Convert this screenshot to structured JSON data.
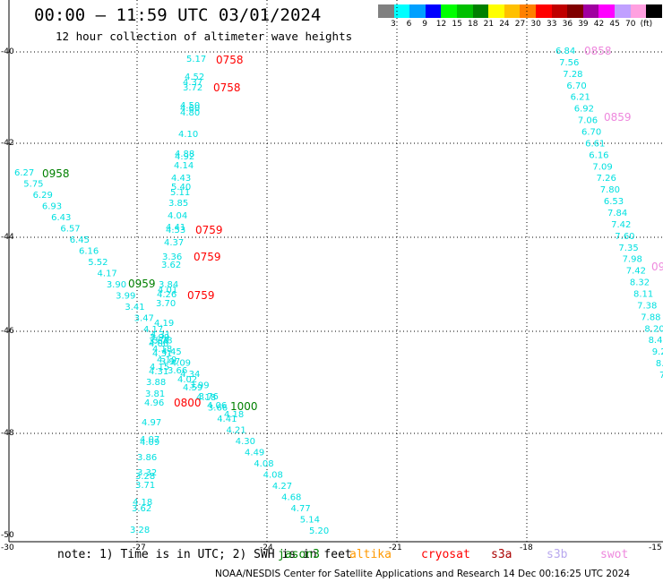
{
  "header": {
    "title": "00:00 — 11:59 UTC 03/01/2024",
    "subtitle": "12 hour collection of altimeter wave heights"
  },
  "scale": {
    "colors": [
      "#808080",
      "#00ffff",
      "#00a0ff",
      "#0000ff",
      "#00ff00",
      "#00c000",
      "#008000",
      "#ffff00",
      "#ffc000",
      "#ff8000",
      "#ff0000",
      "#c00000",
      "#800000",
      "#a000a0",
      "#ff00ff",
      "#c0a0ff",
      "#ffa0e0",
      "#000000"
    ],
    "labels": [
      "3",
      "6",
      "9",
      "12",
      "15",
      "18",
      "21",
      "24",
      "27",
      "30",
      "33",
      "36",
      "39",
      "42",
      "45",
      "70",
      "(ft)"
    ]
  },
  "axes": {
    "x_ticks": [
      "-27",
      "-24",
      "-21",
      "-18",
      "-15"
    ],
    "y_ticks": [
      "-40",
      "-42",
      "-44",
      "-46",
      "-48",
      "-50"
    ],
    "corner": "-30"
  },
  "tracks": {
    "cyan_a": [
      "5.17",
      "4.52",
      "4.37",
      "3.72",
      "4.50",
      "4.60",
      "4.80",
      "4.10"
    ],
    "cyan_b": [
      "4.88",
      "4.92",
      "4.14",
      "4.43",
      "5.40",
      "5.11",
      "3.85",
      "4.04",
      "4.41",
      "4.53",
      "4.37",
      "3.36",
      "3.62",
      "3.84",
      "4.01",
      "4.26",
      "3.70"
    ],
    "cyan_c": [
      "4.19",
      "4.31",
      "3.99",
      "3.64",
      "4.06",
      "4.18",
      "4.31",
      "4.10",
      "3.97",
      "4.15",
      "3.66",
      "4.31",
      "4.02",
      "3.88",
      "4.59",
      "3.81",
      "4.18",
      "4.96",
      "4.06",
      "4.18"
    ],
    "cyan_d": [
      "4.97",
      "4.07",
      "4.09",
      "3.86",
      "3.32",
      "3.28",
      "3.71",
      "4.18",
      "3.62",
      "3.28"
    ],
    "cyan_diag": [
      "6.27",
      "5.75",
      "6.29",
      "6.93",
      "6.43",
      "6.57",
      "6.45",
      "6.16",
      "5.52",
      "4.17",
      "3.90",
      "3.99",
      "3.41",
      "3.47",
      "4.17",
      "3.78",
      "4.45",
      "4.09",
      "4.34",
      "3.99",
      "3.76",
      "3.66",
      "4.41",
      "4.21",
      "4.30",
      "4.49",
      "4.08",
      "4.08",
      "4.27",
      "4.68",
      "4.77",
      "5.14",
      "5.20"
    ],
    "cyan_right": [
      "6.84",
      "7.56",
      "7.28",
      "6.70",
      "6.21",
      "6.92",
      "7.06",
      "6.70",
      "6.61",
      "6.16",
      "7.09",
      "7.26",
      "7.80",
      "6.53",
      "7.84",
      "7.42",
      "7.60",
      "7.35",
      "7.98",
      "7.42",
      "8.32",
      "8.11",
      "7.38",
      "7.88",
      "8.20",
      "8.4",
      "9.2",
      "8.",
      "7"
    ],
    "times_red": [
      "0758",
      "0758",
      "0759",
      "0759",
      "0759",
      "0800"
    ],
    "times_green": [
      "0958",
      "0959",
      "1000"
    ],
    "times_pink": [
      "0858",
      "0859",
      "09"
    ]
  },
  "note": "note: 1) Time is in UTC; 2) SWH is in feet",
  "satellites": [
    {
      "name": "jason3",
      "color": "#008000"
    },
    {
      "name": "altika",
      "color": "#ff9900"
    },
    {
      "name": "cryosat",
      "color": "#ff0000"
    },
    {
      "name": "s3a",
      "color": "#aa0000"
    },
    {
      "name": "s3b",
      "color": "#b8a8ee"
    },
    {
      "name": "swot",
      "color": "#ee88dd"
    }
  ],
  "footer": "NOAA/NESDIS Center for Satellite Applications and Research    14 Dec 00:16:25 UTC 2024"
}
